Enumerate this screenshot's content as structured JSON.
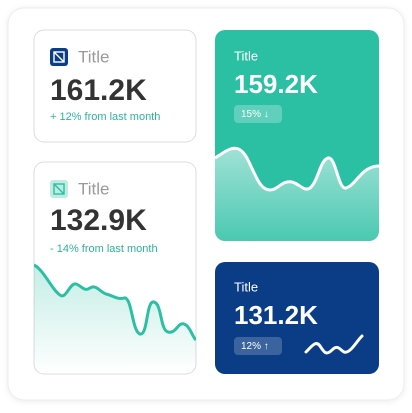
{
  "cards": [
    {
      "title": "Title",
      "value": "161.2K",
      "change": "+ 12% from last month"
    },
    {
      "title": "Title",
      "value": "132.9K",
      "change": "- 14% from last month"
    },
    {
      "title": "Title",
      "value": "159.2K",
      "badge": "15% ↓"
    },
    {
      "title": "Title",
      "value": "131.2K",
      "badge": "12% ↑"
    }
  ]
}
